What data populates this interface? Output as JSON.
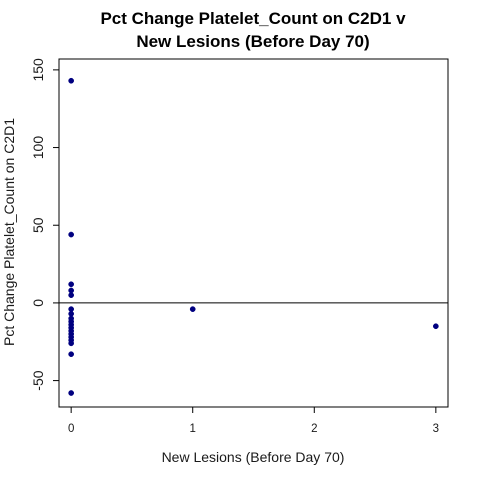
{
  "chart_data": {
    "type": "scatter",
    "title_line1": "Pct Change Platelet_Count on C2D1 v",
    "title_line2": "New Lesions (Before Day 70)",
    "xlabel": "New Lesions (Before Day 70)",
    "ylabel": "Pct Change Platelet_Count on C2D1",
    "xlim": [
      -0.1,
      3.1
    ],
    "ylim": [
      -67,
      157
    ],
    "xticks": [
      0,
      1,
      2,
      3
    ],
    "xtick_labels": [
      "0",
      "1",
      "2",
      "3"
    ],
    "yticks": [
      -50,
      0,
      50,
      100,
      150
    ],
    "ytick_labels": [
      "-50",
      "0",
      "50",
      "100",
      "150"
    ],
    "reference_line_y": 0,
    "grid": false,
    "point_color": "#000080",
    "points": [
      {
        "x": 0,
        "y": 143
      },
      {
        "x": 0,
        "y": 44
      },
      {
        "x": 0,
        "y": 12
      },
      {
        "x": 0,
        "y": 8
      },
      {
        "x": 0,
        "y": 5
      },
      {
        "x": 0,
        "y": -4
      },
      {
        "x": 0,
        "y": -7
      },
      {
        "x": 0,
        "y": -10
      },
      {
        "x": 0,
        "y": -12
      },
      {
        "x": 0,
        "y": -14
      },
      {
        "x": 0,
        "y": -16
      },
      {
        "x": 0,
        "y": -18
      },
      {
        "x": 0,
        "y": -20
      },
      {
        "x": 0,
        "y": -22
      },
      {
        "x": 0,
        "y": -24
      },
      {
        "x": 0,
        "y": -26
      },
      {
        "x": 0,
        "y": -33
      },
      {
        "x": 0,
        "y": -58
      },
      {
        "x": 1,
        "y": -4
      },
      {
        "x": 3,
        "y": -15
      }
    ]
  }
}
